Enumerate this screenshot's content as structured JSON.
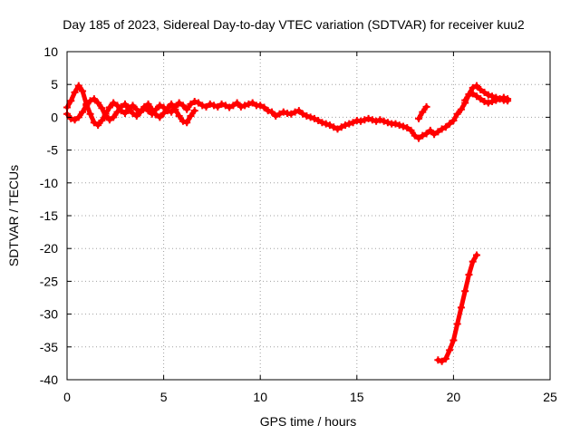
{
  "chart_data": {
    "type": "scatter",
    "title": "Day 185 of 2023, Sidereal Day-to-day VTEC variation (SDTVAR) for receiver kuu2",
    "xlabel": "GPS time / hours",
    "ylabel": "SDTVAR / TECUs",
    "xlim": [
      0,
      25
    ],
    "ylim": [
      -40,
      10
    ],
    "x_ticks": [
      0,
      5,
      10,
      15,
      20,
      25
    ],
    "y_ticks": [
      -40,
      -35,
      -30,
      -25,
      -20,
      -15,
      -10,
      -5,
      0,
      5,
      10
    ],
    "grid": true,
    "legend": "none",
    "marker": "+",
    "series_color": "#ff0000",
    "grid_color": "#a0a0a0",
    "series": [
      {
        "name": "main-trace",
        "x": [
          0.0,
          0.2,
          0.4,
          0.6,
          0.8,
          1.0,
          1.2,
          1.4,
          1.6,
          1.8,
          2.0,
          2.2,
          2.4,
          2.6,
          2.8,
          3.0,
          3.2,
          3.4,
          3.6,
          3.8,
          4.0,
          4.2,
          4.4,
          4.6,
          4.8,
          5.0,
          5.2,
          5.4,
          5.6,
          5.8,
          6.0,
          6.2,
          6.4,
          6.6,
          6.8,
          7.0,
          7.2,
          7.4,
          7.6,
          7.8,
          8.0,
          8.2,
          8.4,
          8.6,
          8.8,
          9.0,
          9.2,
          9.4,
          9.6,
          9.8,
          10.0,
          10.2,
          10.4,
          10.6,
          10.8,
          11.0,
          11.2,
          11.4,
          11.6,
          11.8,
          12.0,
          12.2,
          12.4,
          12.6,
          12.8,
          13.0,
          13.2,
          13.4,
          13.6,
          13.8,
          14.0,
          14.2,
          14.4,
          14.6,
          14.8,
          15.0,
          15.2,
          15.4,
          15.6,
          15.8,
          16.0,
          16.2,
          16.4,
          16.6,
          16.8,
          17.0,
          17.2,
          17.4,
          17.6,
          17.8,
          18.0,
          18.2,
          18.4,
          18.6,
          18.8,
          19.0,
          19.2,
          19.4,
          19.6,
          19.8,
          20.0,
          20.2,
          20.4,
          20.6,
          20.8,
          21.0,
          21.2,
          21.4,
          21.6,
          21.8,
          22.0,
          22.2,
          22.4,
          22.6,
          22.8
        ],
        "y": [
          1.5,
          2.5,
          3.8,
          4.8,
          4.0,
          2.0,
          0.5,
          -0.8,
          -1.2,
          -0.5,
          0.5,
          1.5,
          2.2,
          1.8,
          1.0,
          0.6,
          1.2,
          1.8,
          1.2,
          0.8,
          1.4,
          1.0,
          0.5,
          1.2,
          1.8,
          1.5,
          1.0,
          0.8,
          1.6,
          2.2,
          1.8,
          1.2,
          2.0,
          2.4,
          2.2,
          1.8,
          1.6,
          2.0,
          1.8,
          1.6,
          2.0,
          1.8,
          1.5,
          1.8,
          2.2,
          1.6,
          1.8,
          2.0,
          2.2,
          1.8,
          1.8,
          1.5,
          1.0,
          0.8,
          0.2,
          0.5,
          0.8,
          0.6,
          0.5,
          0.8,
          1.0,
          0.5,
          0.2,
          0.0,
          -0.2,
          -0.5,
          -0.8,
          -1.0,
          -1.2,
          -1.5,
          -1.8,
          -1.5,
          -1.2,
          -1.0,
          -0.8,
          -0.5,
          -0.6,
          -0.4,
          -0.2,
          -0.4,
          -0.6,
          -0.4,
          -0.6,
          -0.8,
          -1.0,
          -1.0,
          -1.2,
          -1.4,
          -1.6,
          -2.0,
          -2.8,
          -3.2,
          -2.8,
          -2.5,
          -2.0,
          -2.6,
          -2.2,
          -1.8,
          -1.5,
          -1.0,
          -0.5,
          0.5,
          1.2,
          2.2,
          3.5,
          4.5,
          4.8,
          4.2,
          3.8,
          3.4,
          3.2,
          3.0,
          2.8,
          2.6,
          2.5
        ]
      },
      {
        "name": "early-loop-trace",
        "x": [
          0.0,
          0.2,
          0.4,
          0.6,
          0.8,
          1.0,
          1.2,
          1.4,
          1.6,
          1.8,
          2.0,
          2.2,
          2.4,
          2.6,
          2.8,
          3.0,
          3.2,
          3.4,
          3.6,
          3.8,
          4.0,
          4.2,
          4.4,
          4.6,
          4.8,
          5.0,
          5.2,
          5.4,
          5.6,
          5.8,
          6.0,
          6.2,
          6.4,
          6.6
        ],
        "y": [
          0.5,
          -0.2,
          -0.4,
          0.0,
          0.8,
          1.8,
          2.5,
          2.8,
          2.2,
          1.4,
          0.2,
          -0.4,
          0.0,
          0.8,
          1.6,
          2.0,
          1.4,
          0.6,
          0.2,
          0.8,
          1.6,
          2.0,
          1.2,
          0.4,
          0.0,
          0.6,
          1.4,
          2.0,
          1.2,
          0.2,
          -0.6,
          -0.8,
          0.2,
          1.0
        ]
      },
      {
        "name": "short-segment",
        "x": [
          18.2,
          18.4,
          18.6
        ],
        "y": [
          -0.2,
          0.8,
          1.6
        ]
      },
      {
        "name": "late-upper-trace",
        "x": [
          20.6,
          20.8,
          21.0,
          21.2,
          21.4,
          21.6,
          21.8,
          22.0,
          22.2,
          22.4,
          22.6,
          22.8
        ],
        "y": [
          2.6,
          3.4,
          3.6,
          3.2,
          2.8,
          2.4,
          2.2,
          2.4,
          2.6,
          2.8,
          3.0,
          2.8
        ]
      },
      {
        "name": "descending-trace",
        "x": [
          19.2,
          19.4,
          19.6,
          19.8,
          20.0,
          20.2,
          20.4,
          20.6,
          20.8,
          21.0,
          21.2
        ],
        "y": [
          -37.0,
          -37.2,
          -36.8,
          -35.5,
          -34.0,
          -31.5,
          -29.0,
          -26.5,
          -24.0,
          -22.0,
          -21.0
        ]
      }
    ]
  }
}
